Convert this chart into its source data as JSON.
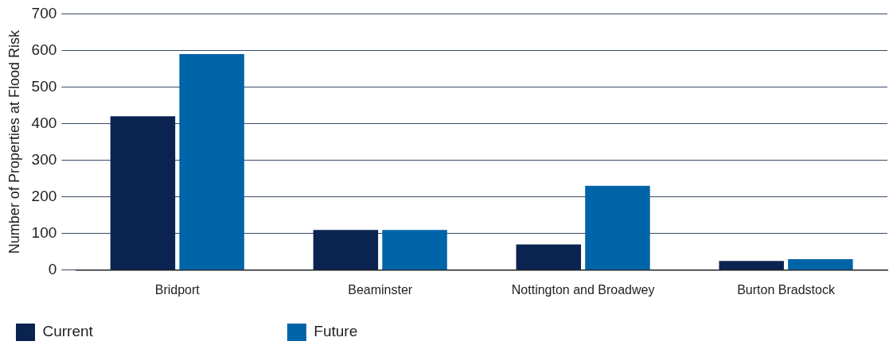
{
  "chart_data": {
    "type": "bar",
    "ylabel": "Number of Properties at Flood Risk",
    "categories": [
      "Bridport",
      "Beaminster",
      "Nottington and Broadwey",
      "Burton Bradstock"
    ],
    "series": [
      {
        "name": "Current",
        "color": "#0b2350",
        "values": [
          420,
          110,
          70,
          25
        ]
      },
      {
        "name": "Future",
        "color": "#0064a8",
        "values": [
          590,
          110,
          230,
          30
        ]
      }
    ],
    "ylim": [
      0,
      700
    ],
    "yticks": [
      0,
      100,
      200,
      300,
      400,
      500,
      600,
      700
    ],
    "grid": "y",
    "legend": "bottom left"
  }
}
